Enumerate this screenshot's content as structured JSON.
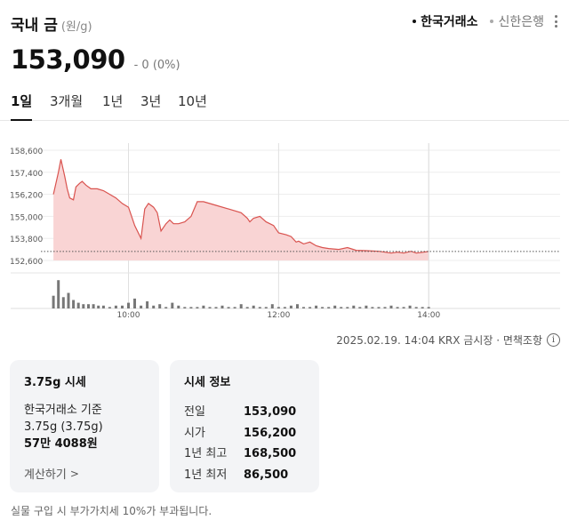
{
  "header": {
    "title": "국내 금",
    "unit": "(원/g)",
    "sources": [
      {
        "label": "한국거래소",
        "active": true
      },
      {
        "label": "신한은행",
        "active": false
      }
    ],
    "more_icon": "more-vertical-icon"
  },
  "price": {
    "current": "153,090",
    "change": "- 0 (0%)"
  },
  "tabs": [
    {
      "label": "1일",
      "active": true
    },
    {
      "label": "3개월",
      "active": false
    },
    {
      "label": "1년",
      "active": false
    },
    {
      "label": "3년",
      "active": false
    },
    {
      "label": "10년",
      "active": false
    }
  ],
  "colors": {
    "line": "#d9534f",
    "fill": "#f9d4d4",
    "volume": "#777777"
  },
  "chart_data": {
    "type": "area",
    "y_ticks": [
      "158,600",
      "157,400",
      "156,200",
      "155,000",
      "153,800",
      "152,600"
    ],
    "y_tick_values": [
      158600,
      157400,
      156200,
      155000,
      153800,
      152600
    ],
    "ylim": [
      152600,
      158600
    ],
    "x_ticks": [
      "10:00",
      "12:00",
      "14:00"
    ],
    "x_tick_minutes": [
      600,
      720,
      840
    ],
    "xlim": [
      530,
      945
    ],
    "baseline": 153090,
    "series": [
      {
        "x": [
          540,
          544,
          546,
          549,
          551,
          553,
          556,
          558,
          561,
          563,
          566,
          570,
          575,
          580,
          585,
          590,
          595,
          600,
          605,
          610,
          613,
          616,
          620,
          623,
          626,
          630,
          633,
          636,
          640,
          645,
          650,
          655,
          660,
          670,
          680,
          690,
          695,
          697,
          700,
          705,
          710,
          716,
          720,
          726,
          730,
          734,
          736,
          740,
          745,
          750,
          755,
          760,
          768,
          775,
          782,
          790,
          800,
          810,
          815,
          820,
          826,
          830,
          836,
          840
        ],
        "y": [
          156200,
          157400,
          158100,
          157200,
          156500,
          156000,
          155900,
          156600,
          156800,
          156900,
          156700,
          156500,
          156500,
          156400,
          156200,
          156000,
          155700,
          155500,
          154500,
          153800,
          155400,
          155700,
          155500,
          155200,
          154200,
          154600,
          154800,
          154600,
          154600,
          154700,
          155000,
          155800,
          155800,
          155600,
          155400,
          155200,
          154900,
          154700,
          154900,
          155000,
          154700,
          154500,
          154100,
          154000,
          153900,
          153600,
          153650,
          153500,
          153600,
          153400,
          153300,
          153250,
          153200,
          153300,
          153150,
          153130,
          153100,
          153000,
          153050,
          153000,
          153100,
          153000,
          153050,
          153090
        ]
      }
    ],
    "volume_x": [
      540,
      544,
      548,
      552,
      556,
      560,
      564,
      568,
      572,
      576,
      580,
      585,
      590,
      595,
      600,
      605,
      610,
      615,
      620,
      625,
      630,
      635,
      640,
      645,
      650,
      655,
      660,
      665,
      670,
      675,
      680,
      685,
      690,
      695,
      700,
      705,
      710,
      715,
      720,
      725,
      730,
      735,
      740,
      745,
      750,
      755,
      760,
      765,
      770,
      775,
      780,
      785,
      790,
      795,
      800,
      805,
      810,
      815,
      820,
      825,
      830,
      835,
      840
    ],
    "volume": [
      9,
      20,
      8,
      11,
      6,
      4,
      3,
      3,
      3,
      2,
      2,
      1,
      2,
      2,
      4,
      7,
      2,
      5,
      2,
      3,
      1,
      4,
      2,
      1,
      1,
      1,
      2,
      1,
      1,
      2,
      1,
      1,
      3,
      1,
      2,
      1,
      1,
      3,
      1,
      1,
      2,
      3,
      1,
      1,
      2,
      1,
      1,
      2,
      1,
      1,
      2,
      1,
      2,
      1,
      1,
      1,
      2,
      1,
      1,
      2,
      1,
      1,
      1
    ],
    "vlim": [
      0,
      22
    ]
  },
  "timestamp": "2025.02.19. 14:04 KRX 금시장 · 면책조항",
  "info_icon": "info-icon",
  "card1": {
    "title": "3.75g 시세",
    "line1": "한국거래소 기준",
    "line2": "3.75g (3.75g)",
    "line3": "57만 4088원",
    "link": "계산하기"
  },
  "card2": {
    "title": "시세 정보",
    "rows": [
      {
        "label": "전일",
        "value": "153,090"
      },
      {
        "label": "시가",
        "value": "156,200"
      },
      {
        "label": "1년 최고",
        "value": "168,500"
      },
      {
        "label": "1년 최저",
        "value": "86,500"
      }
    ]
  },
  "footnote": "실물 구입 시 부가가치세 10%가 부과됩니다."
}
